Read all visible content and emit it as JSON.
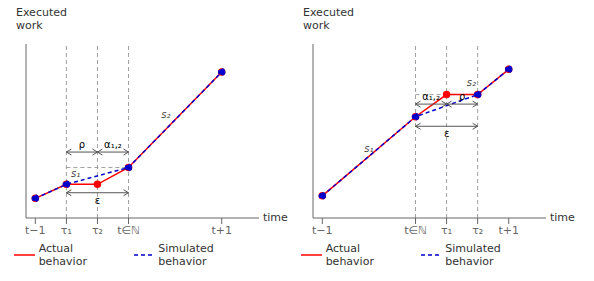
{
  "chart_data": [
    {
      "type": "line",
      "x_label": "time",
      "y_label": "Executed\nwork",
      "xlim": [
        -0.3,
        7.2
      ],
      "ylim": [
        0.3,
        6.5
      ],
      "xticks": [
        {
          "value": 0,
          "label": "t−1"
        },
        {
          "value": 1,
          "label": "τ₁"
        },
        {
          "value": 2,
          "label": "τ₂"
        },
        {
          "value": 3,
          "label": "t∈ℕ"
        },
        {
          "value": 6,
          "label": "t+1"
        }
      ],
      "tick_labels": "x",
      "legend": "bottom",
      "series": [
        {
          "name": "Actual behavior",
          "color": "#ff0000",
          "line_style": "solid",
          "marker": "circle",
          "x": [
            0,
            1,
            2,
            3,
            6
          ],
          "values": [
            1,
            1.5,
            1.5,
            2.1,
            5.5
          ]
        },
        {
          "name": "Simulated behavior",
          "color": "#0000cc",
          "line_style": "dashed",
          "marker": "circle",
          "x": [
            0,
            1,
            3,
            6
          ],
          "values": [
            1,
            1.5,
            2.1,
            5.5
          ]
        }
      ],
      "annotations": [
        {
          "text": "ρ",
          "x": [
            1,
            2
          ],
          "y": 2.65
        },
        {
          "text": "α₁,₂",
          "x": [
            2,
            3
          ],
          "y": 2.65
        },
        {
          "text": "ε",
          "x": [
            1,
            3
          ],
          "y": 1.2
        },
        {
          "text": "s₁",
          "x": 1.3,
          "y": 1.9
        },
        {
          "text": "s₂",
          "x": 4.2,
          "y": 4.0
        }
      ],
      "vlines": [
        1,
        2,
        3
      ],
      "hline": {
        "y": 2.1,
        "x": [
          1,
          3
        ]
      }
    },
    {
      "type": "line",
      "x_label": "time",
      "y_label": "Executed\nwork",
      "xlim": [
        -0.3,
        7.2
      ],
      "ylim": [
        0.3,
        5.8
      ],
      "xticks": [
        {
          "value": 0,
          "label": "t−1"
        },
        {
          "value": 3,
          "label": "t∈ℕ"
        },
        {
          "value": 4,
          "label": "τ₁"
        },
        {
          "value": 5,
          "label": "τ₂"
        },
        {
          "value": 6,
          "label": "t+1"
        }
      ],
      "tick_labels": "x",
      "legend": "bottom",
      "series": [
        {
          "name": "Actual behavior",
          "color": "#ff0000",
          "line_style": "solid",
          "marker": "circle",
          "x": [
            0,
            3,
            4,
            5,
            6
          ],
          "values": [
            1,
            3.5,
            4.2,
            4.2,
            5.0
          ]
        },
        {
          "name": "Simulated behavior",
          "color": "#0000cc",
          "line_style": "dashed",
          "marker": "circle",
          "x": [
            0,
            3,
            5,
            6
          ],
          "values": [
            1,
            3.5,
            4.2,
            5.0
          ]
        }
      ],
      "annotations": [
        {
          "text": "α₁,₂",
          "x": [
            3,
            4
          ],
          "y": 3.9
        },
        {
          "text": "ρ",
          "x": [
            4,
            5
          ],
          "y": 3.9
        },
        {
          "text": "ε",
          "x": [
            3,
            5
          ],
          "y": 3.2
        },
        {
          "text": "s₁",
          "x": 1.5,
          "y": 2.5
        },
        {
          "text": "s₂",
          "x": 4.8,
          "y": 4.6
        }
      ],
      "vlines": [
        3,
        4,
        5
      ],
      "hline": {
        "y": 4.2,
        "x": [
          3,
          5
        ]
      }
    }
  ]
}
